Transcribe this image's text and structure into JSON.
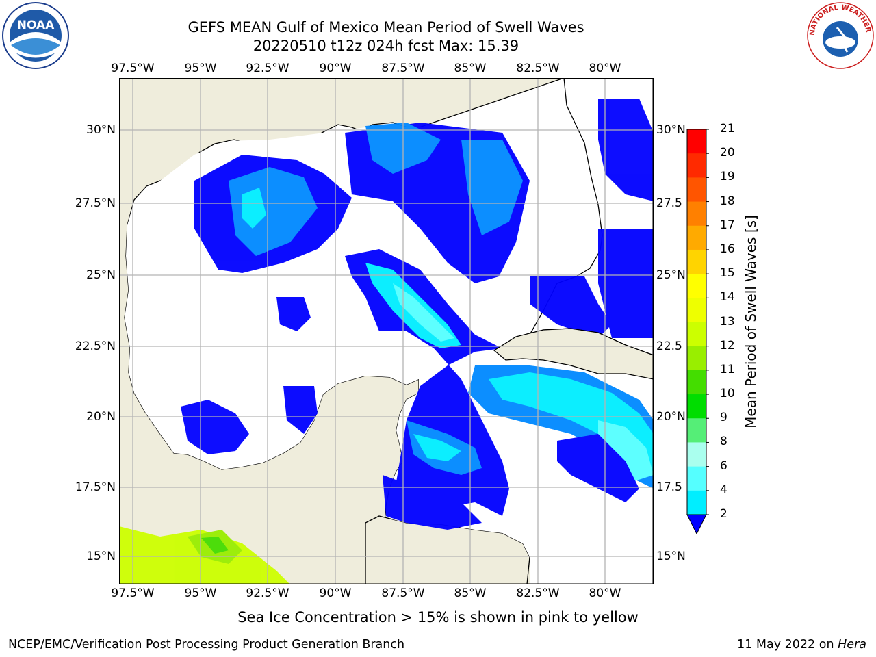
{
  "title": {
    "line1": "GEFS MEAN Gulf of Mexico Mean Period of Swell Waves",
    "line2": "20220510 t12z 024h fcst   Max: 15.39"
  },
  "map": {
    "lon_ticks": [
      "97.5°W",
      "95°W",
      "92.5°W",
      "90°W",
      "87.5°W",
      "85°W",
      "82.5°W",
      "80°W"
    ],
    "lat_ticks_left": [
      "30°N",
      "27.5°N",
      "25°N",
      "22.5°N",
      "20°N",
      "17.5°N",
      "15°N"
    ],
    "lat_ticks_right": [
      "30°N",
      "27.5",
      "25°N",
      "22.5",
      "20°N",
      "17.5",
      "15°N"
    ],
    "land_color": "#efeddc",
    "ocean_color": "#ffffff",
    "grid_color": "#b4b4b4"
  },
  "colorbar": {
    "title": "Mean Period of Swell Waves [s]",
    "ticks": [
      "21",
      "20",
      "19",
      "18",
      "17",
      "16",
      "15",
      "14",
      "13",
      "12",
      "11",
      "10",
      "9",
      "8",
      "6",
      "4",
      "2"
    ],
    "colors": [
      "#ff0000",
      "#ff2a00",
      "#ff5500",
      "#ff8000",
      "#ffaa00",
      "#ffd400",
      "#ffff00",
      "#eeff00",
      "#ccff00",
      "#99ee00",
      "#44dd00",
      "#00dd00",
      "#55ee77",
      "#aaffee",
      "#55ffff",
      "#00eeff",
      "#0088ff"
    ],
    "extend_color": "#0000ff"
  },
  "subtitle": "Sea Ice Concentration > 15% is shown in pink to yellow",
  "footer": {
    "left": "NCEP/EMC/Verification Post Processing Product Generation Branch",
    "right_prefix": "11 May 2022 on",
    "right_host": "Hera"
  },
  "logos": {
    "left": "NOAA",
    "right": "NATIONAL WEATHER SERVICE"
  }
}
